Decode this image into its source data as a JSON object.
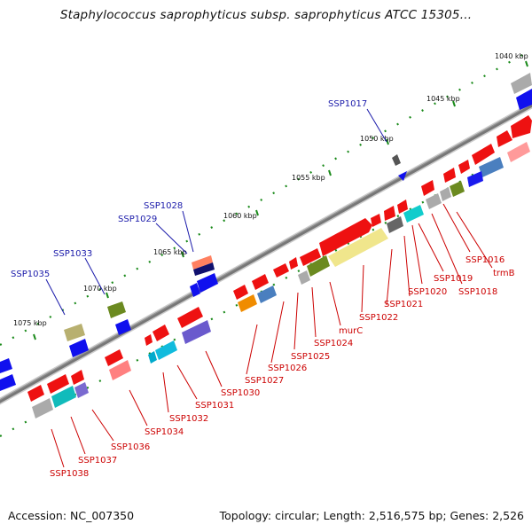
{
  "title": "Staphylococcus saprophyticus subsp. saprophyticus ATCC 15305...",
  "footer": {
    "accession": "Accession: NC_007350",
    "topology": "Topology: circular; Length: 2,516,575 bp; Genes: 2,526"
  },
  "scale_labels": [
    "1040 kbp",
    "1045 kbp",
    "1050 kbp",
    "1055 kbp",
    "1060 kbp",
    "1065 kbp",
    "1070 kbp",
    "1075 kbp"
  ],
  "upper_labels": [
    "SSP1017",
    "SSP1028",
    "SSP1029",
    "SSP1033",
    "SSP1035"
  ],
  "lower_labels": [
    "trmB",
    "SSP1016",
    "SSP1018",
    "SSP1019",
    "SSP1020",
    "SSP1021",
    "SSP1022",
    "murC",
    "SSP1024",
    "SSP1025",
    "SSP1026",
    "SSP1027",
    "SSP1030",
    "SSP1031",
    "SSP1032",
    "SSP1034",
    "SSP1036",
    "SSP1037",
    "SSP1038"
  ],
  "colors": {
    "forward_gene": "#ee1111",
    "reverse_gene": "#1010ee",
    "label_upper": "#1a1aaa",
    "label_lower": "#cc0000",
    "ticks": "#1a8a1a",
    "backbone": "#888888"
  }
}
